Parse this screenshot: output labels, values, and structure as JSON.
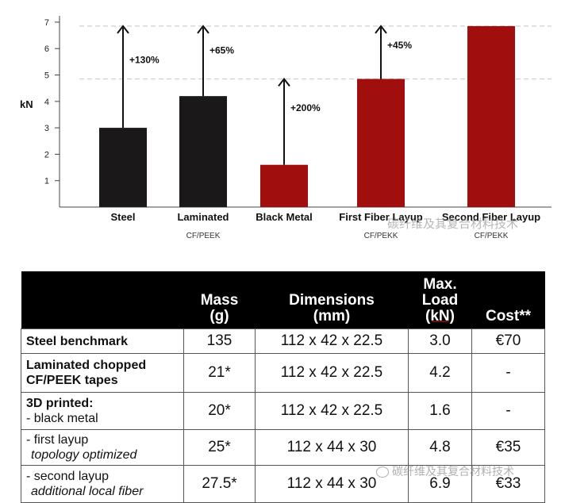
{
  "chart_data": {
    "type": "bar",
    "ylabel": "kN",
    "ylim": [
      0,
      7
    ],
    "yticks": [
      "1",
      "2",
      "3",
      "4",
      "5",
      "6",
      "7"
    ],
    "categories": [
      "Steel",
      "Laminated",
      "Black Metal",
      "First Fiber Layup",
      "Second Fiber Layup"
    ],
    "sublabels": [
      "",
      "CF/PEEK",
      "",
      "CF/PEKK",
      "CF/PEKK"
    ],
    "values": [
      3.0,
      4.2,
      1.6,
      4.85,
      6.85
    ],
    "colors": [
      "#1a1818",
      "#1a1818",
      "#a10e0e",
      "#a10e0e",
      "#a10e0e"
    ],
    "reference_lines": [
      4.85,
      6.85
    ],
    "arrows": [
      {
        "bar": 0,
        "to": 6.85,
        "label": "+130%"
      },
      {
        "bar": 1,
        "to": 6.85,
        "label": "+65%"
      },
      {
        "bar": 2,
        "to": 4.85,
        "label": "+200%"
      },
      {
        "bar": 3,
        "to": 6.85,
        "label": "+45%"
      }
    ],
    "grid": false
  },
  "watermark_text": "碳纤维及其复合材料技术",
  "table": {
    "headers": {
      "mass": [
        "Mass",
        "(g)"
      ],
      "dimensions": [
        "Dimensions",
        "(mm)"
      ],
      "max_load": [
        "Max.",
        "Load",
        "(kN)"
      ],
      "cost": "Cost**"
    },
    "rows": {
      "steel": {
        "label": "Steel benchmark",
        "mass": "135",
        "dimensions": "112 x 42 x 22.5",
        "load": "3.0",
        "cost": "€70"
      },
      "laminated": {
        "label": [
          "Laminated chopped",
          "CF/PEEK tapes"
        ],
        "mass": "21*",
        "dimensions": "112 x 42 x 22.5",
        "load": "4.2",
        "cost": "-"
      },
      "black": {
        "label": [
          "3D printed:",
          "- black metal"
        ],
        "mass": "20*",
        "dimensions": "112 x 42 x 22.5",
        "load": "1.6",
        "cost": "-"
      },
      "first": {
        "label": [
          "- first layup",
          "topology optimized"
        ],
        "mass": "25*",
        "dimensions": "112 x 44 x 30",
        "load": "4.8",
        "cost": "€35"
      },
      "second": {
        "label": [
          "- second layup",
          "additional local fiber"
        ],
        "mass": "27.5*",
        "dimensions": "112 x 44 x 30",
        "load": "6.9",
        "cost": "€33"
      }
    }
  }
}
